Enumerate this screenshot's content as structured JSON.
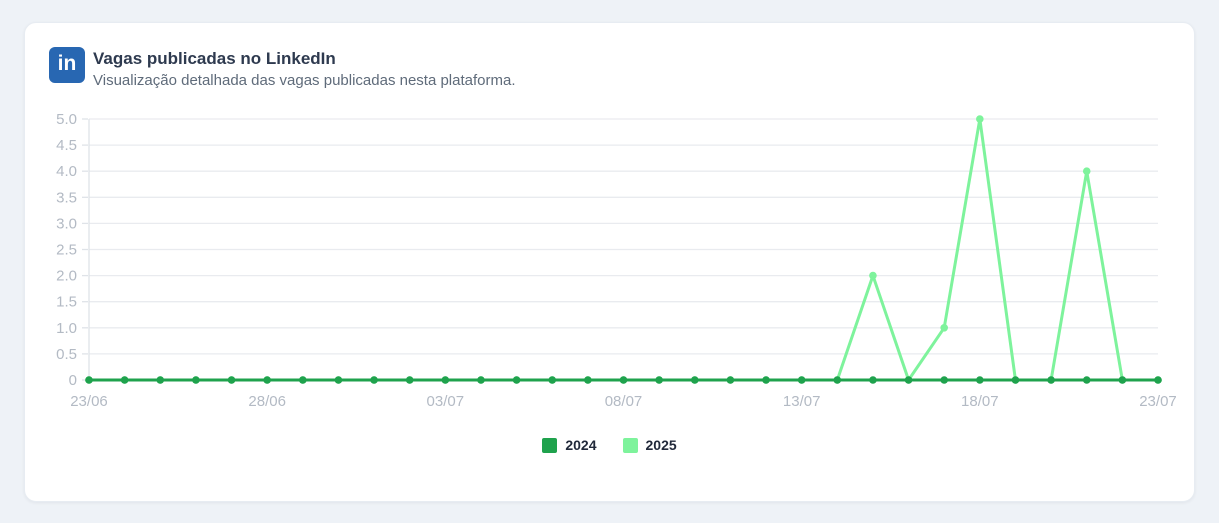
{
  "header": {
    "icon_text": "in",
    "title": "Vagas publicadas no LinkedIn",
    "subtitle": "Visualização detalhada das vagas publicadas nesta plataforma."
  },
  "colors": {
    "background": "#eef2f7",
    "card": "#ffffff",
    "linkedin_blue": "#2867b2",
    "grid": "#e9ebef",
    "axis_line": "#dfe3e8",
    "tick_text": "#b3bac4",
    "series_2024": "#1fa24d",
    "series_2025": "#7ef39c"
  },
  "chart_data": {
    "type": "line",
    "title": "Vagas publicadas no LinkedIn",
    "xlabel": "",
    "ylabel": "",
    "ylim": [
      0,
      5
    ],
    "y_tick_step": 0.5,
    "y_tick_labels": [
      "0",
      "0.5",
      "1.0",
      "1.5",
      "2.0",
      "2.5",
      "3.0",
      "3.5",
      "4.0",
      "4.5",
      "5.0"
    ],
    "grid": true,
    "legend_position": "bottom",
    "x": [
      "23/06",
      "24/06",
      "25/06",
      "26/06",
      "27/06",
      "28/06",
      "29/06",
      "30/06",
      "01/07",
      "02/07",
      "03/07",
      "04/07",
      "05/07",
      "06/07",
      "07/07",
      "08/07",
      "09/07",
      "10/07",
      "11/07",
      "12/07",
      "13/07",
      "14/07",
      "15/07",
      "16/07",
      "17/07",
      "18/07",
      "19/07",
      "20/07",
      "21/07",
      "22/07",
      "23/07"
    ],
    "x_tick_labels": [
      "23/06",
      "28/06",
      "03/07",
      "08/07",
      "13/07",
      "18/07",
      "23/07"
    ],
    "x_tick_indices": [
      0,
      5,
      10,
      15,
      20,
      25,
      30
    ],
    "series": [
      {
        "name": "2024",
        "color": "#1fa24d",
        "values": [
          0,
          0,
          0,
          0,
          0,
          0,
          0,
          0,
          0,
          0,
          0,
          0,
          0,
          0,
          0,
          0,
          0,
          0,
          0,
          0,
          0,
          0,
          0,
          0,
          0,
          0,
          0,
          0,
          0,
          0,
          0
        ]
      },
      {
        "name": "2025",
        "color": "#7ef39c",
        "values": [
          0,
          0,
          0,
          0,
          0,
          0,
          0,
          0,
          0,
          0,
          0,
          0,
          0,
          0,
          0,
          0,
          0,
          0,
          0,
          0,
          0,
          0,
          2,
          0,
          1,
          5,
          0,
          0,
          4,
          0,
          0
        ]
      }
    ]
  },
  "legend": {
    "items": [
      {
        "label": "2024",
        "color": "#1fa24d"
      },
      {
        "label": "2025",
        "color": "#7ef39c"
      }
    ]
  }
}
